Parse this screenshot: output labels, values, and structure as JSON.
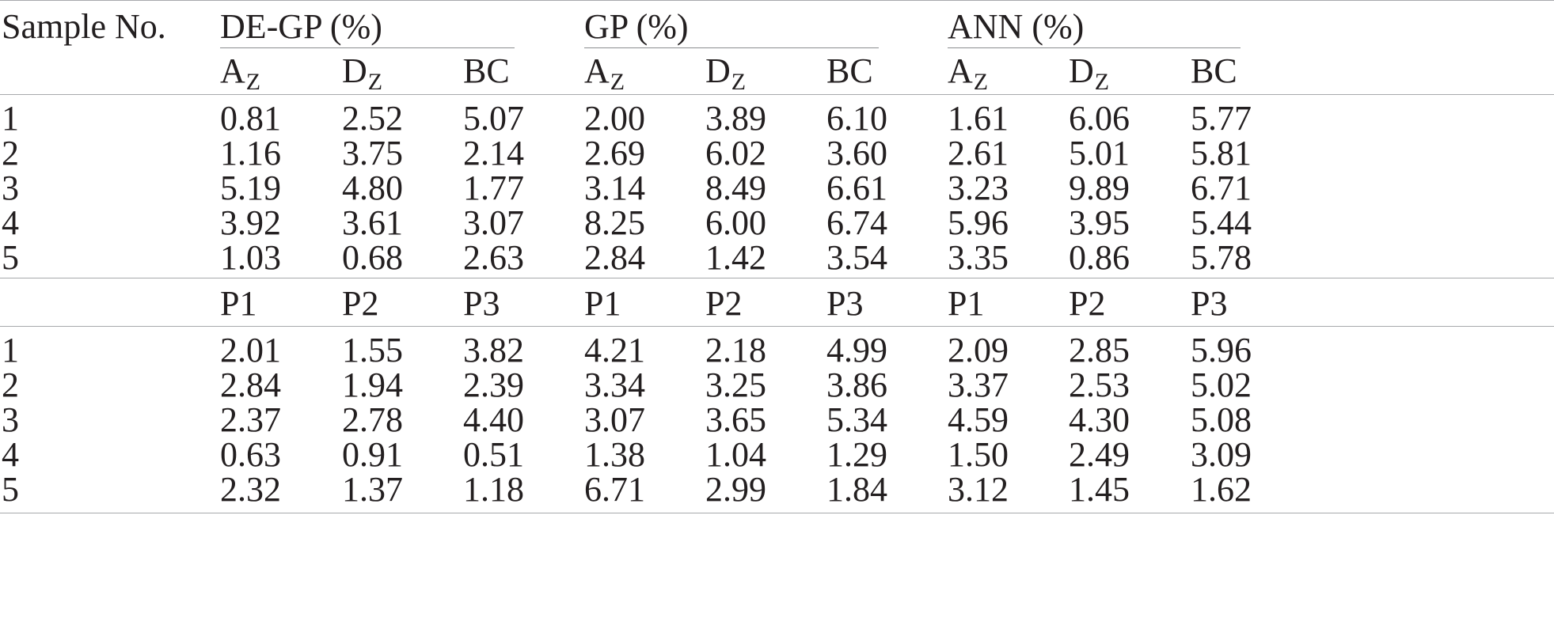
{
  "header": {
    "sample_label": "Sample No.",
    "groups": [
      "DE-GP (%)",
      "GP (%)",
      "ANN (%)"
    ]
  },
  "section1": {
    "columns": [
      {
        "main": "A",
        "sub": "Z"
      },
      {
        "main": "D",
        "sub": "Z"
      },
      {
        "main": "BC",
        "sub": ""
      }
    ],
    "rows": [
      {
        "sample": "1",
        "values": [
          "0.81",
          "2.52",
          "5.07",
          "2.00",
          "3.89",
          "6.10",
          "1.61",
          "6.06",
          "5.77"
        ]
      },
      {
        "sample": "2",
        "values": [
          "1.16",
          "3.75",
          "2.14",
          "2.69",
          "6.02",
          "3.60",
          "2.61",
          "5.01",
          "5.81"
        ]
      },
      {
        "sample": "3",
        "values": [
          "5.19",
          "4.80",
          "1.77",
          "3.14",
          "8.49",
          "6.61",
          "3.23",
          "9.89",
          "6.71"
        ]
      },
      {
        "sample": "4",
        "values": [
          "3.92",
          "3.61",
          "3.07",
          "8.25",
          "6.00",
          "6.74",
          "5.96",
          "3.95",
          "5.44"
        ]
      },
      {
        "sample": "5",
        "values": [
          "1.03",
          "0.68",
          "2.63",
          "2.84",
          "1.42",
          "3.54",
          "3.35",
          "0.86",
          "5.78"
        ]
      }
    ]
  },
  "section2": {
    "columns": [
      "P1",
      "P2",
      "P3"
    ],
    "rows": [
      {
        "sample": "1",
        "values": [
          "2.01",
          "1.55",
          "3.82",
          "4.21",
          "2.18",
          "4.99",
          "2.09",
          "2.85",
          "5.96"
        ]
      },
      {
        "sample": "2",
        "values": [
          "2.84",
          "1.94",
          "2.39",
          "3.34",
          "3.25",
          "3.86",
          "3.37",
          "2.53",
          "5.02"
        ]
      },
      {
        "sample": "3",
        "values": [
          "2.37",
          "2.78",
          "4.40",
          "3.07",
          "3.65",
          "5.34",
          "4.59",
          "4.30",
          "5.08"
        ]
      },
      {
        "sample": "4",
        "values": [
          "0.63",
          "0.91",
          "0.51",
          "1.38",
          "1.04",
          "1.29",
          "1.50",
          "2.49",
          "3.09"
        ]
      },
      {
        "sample": "5",
        "values": [
          "2.32",
          "1.37",
          "1.18",
          "6.71",
          "2.99",
          "1.84",
          "3.12",
          "1.45",
          "1.62"
        ]
      }
    ]
  }
}
